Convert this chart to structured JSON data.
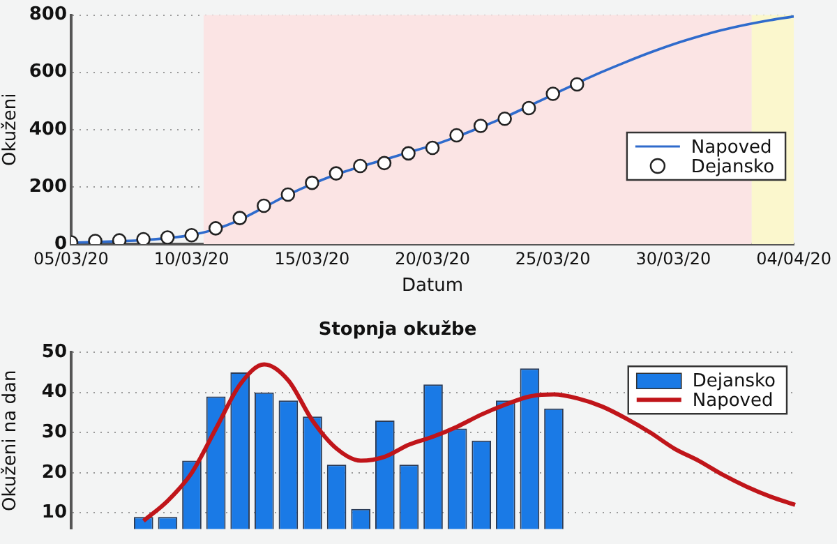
{
  "chart_data": [
    {
      "type": "line",
      "xlabel": "Datum",
      "ylabel": "Okuženi",
      "x": [
        "--03-05",
        "--03-06",
        "--03-07",
        "--03-08",
        "--03-09",
        "--03-10",
        "--03-11",
        "--03-12",
        "--03-13",
        "--03-14",
        "--03-15",
        "--03-16",
        "--03-17",
        "--03-18",
        "--03-19",
        "--03-20",
        "--03-21",
        "--03-22",
        "--03-23",
        "--03-24",
        "--03-25",
        "--03-26",
        "--03-27",
        "--03-28",
        "--03-29",
        "--03-30",
        "--03-31",
        "--04-01",
        "--04-02",
        "--04-03",
        "--04-04"
      ],
      "xlim": [
        "--03-05",
        "--04-04"
      ],
      "xticks": [
        {
          "value": "--03-05",
          "label": "05/03/20"
        },
        {
          "value": "--03-10",
          "label": "10/03/20"
        },
        {
          "value": "--03-15",
          "label": "15/03/20"
        },
        {
          "value": "--03-20",
          "label": "20/03/20"
        },
        {
          "value": "--03-25",
          "label": "25/03/20"
        },
        {
          "value": "--03-30",
          "label": "30/03/20"
        },
        {
          "value": "--04-04",
          "label": "04/04/20"
        }
      ],
      "ylim": [
        0,
        800
      ],
      "yticks": [
        0,
        200,
        400,
        600,
        800
      ],
      "grid": "y",
      "legend": "bottom right",
      "bands": [
        {
          "axis": "x",
          "from": "--03-10T12:00",
          "to": "--04-02T06:00",
          "color": "#fbe4e4"
        },
        {
          "axis": "x",
          "from": "--04-02T06:00",
          "to": "--04-04",
          "color": "#fbf7cd"
        }
      ],
      "series": [
        {
          "name": "Napoved",
          "type": "line",
          "marker": "none",
          "color": "#2f6bcc",
          "values": [
            5,
            7,
            10,
            14,
            21,
            32,
            52,
            85,
            128,
            172,
            210,
            243,
            270,
            295,
            320,
            345,
            375,
            408,
            443,
            482,
            522,
            562,
            600,
            635,
            668,
            698,
            724,
            747,
            766,
            782,
            795
          ]
        },
        {
          "name": "Dejansko",
          "type": "scatter",
          "marker": "circle",
          "color": "#ffffff",
          "x": [
            "--03-05",
            "--03-06",
            "--03-07",
            "--03-08",
            "--03-09",
            "--03-10",
            "--03-11",
            "--03-12",
            "--03-13",
            "--03-14",
            "--03-15",
            "--03-16",
            "--03-17",
            "--03-18",
            "--03-19",
            "--03-20",
            "--03-21",
            "--03-22",
            "--03-23",
            "--03-24",
            "--03-25",
            "--03-26"
          ],
          "values": [
            6,
            11,
            13,
            17,
            23,
            31,
            55,
            91,
            134,
            173,
            214,
            247,
            273,
            283,
            317,
            336,
            380,
            413,
            438,
            475,
            525,
            558
          ]
        }
      ]
    },
    {
      "type": "bar",
      "title": "Stopnja okužbe",
      "ylabel": "Okuženi na dan",
      "categories": [
        null,
        null,
        null,
        null,
        null,
        null,
        null,
        null,
        null,
        null,
        null,
        null,
        null,
        null,
        null,
        null,
        null,
        null,
        null,
        null,
        null,
        null,
        null,
        null,
        null,
        null,
        null,
        null,
        null,
        null,
        null
      ],
      "ylim": [
        6,
        50
      ],
      "yticks": [
        10,
        20,
        30,
        40,
        50
      ],
      "grid": "y",
      "legend": "top right",
      "tick_labels": "y",
      "series": [
        {
          "name": "Dejansko",
          "type": "bar",
          "color": "#1a7ae6",
          "values": [
            null,
            null,
            null,
            9,
            9,
            23,
            39,
            45,
            40,
            38,
            34,
            22,
            11,
            33,
            22,
            42,
            31,
            28,
            38,
            46,
            36,
            null,
            null,
            null,
            null,
            null,
            null,
            null,
            null,
            null,
            null
          ]
        },
        {
          "name": "Napoved",
          "type": "line",
          "color": "#c0151a",
          "values": [
            null,
            null,
            null,
            8,
            13,
            20,
            31,
            42,
            47,
            43,
            33,
            26,
            23,
            24,
            27,
            29,
            31.5,
            34.5,
            37,
            39,
            39.5,
            38.5,
            36.5,
            33.5,
            30,
            26,
            23,
            19.5,
            16.5,
            14,
            12
          ]
        }
      ]
    }
  ]
}
